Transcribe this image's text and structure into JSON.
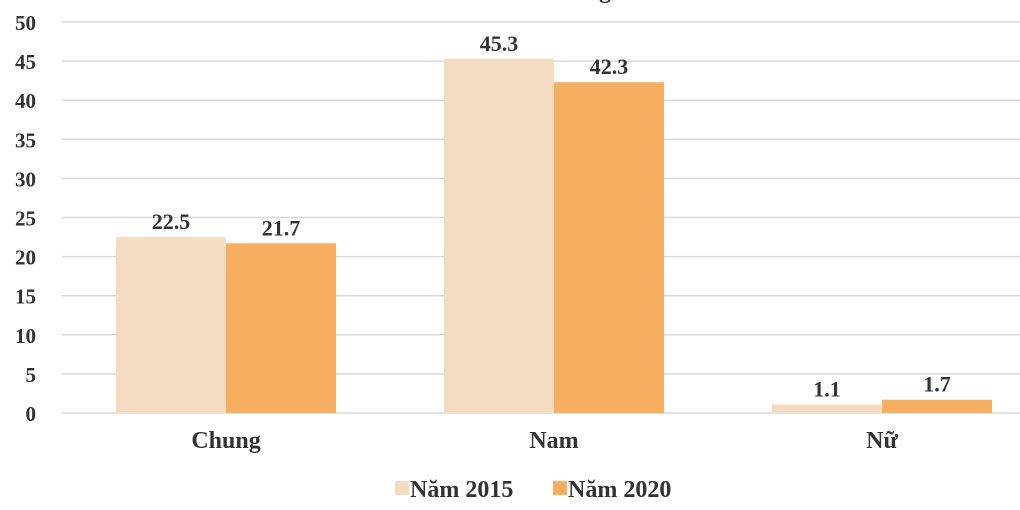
{
  "chart_data": {
    "type": "bar",
    "title": "g",
    "categories": [
      "Chung",
      "Nam",
      "Nữ"
    ],
    "series": [
      {
        "name": "Năm 2015",
        "values": [
          22.5,
          45.3,
          1.1
        ],
        "color": "#f5dcc1"
      },
      {
        "name": "Năm 2020",
        "values": [
          21.7,
          42.3,
          1.7
        ],
        "color": "#f6ae60"
      }
    ],
    "ylim": [
      0,
      50
    ],
    "yticks": [
      0,
      5,
      10,
      15,
      20,
      25,
      30,
      35,
      40,
      45,
      50
    ],
    "grid": true,
    "legend": "bottom-center",
    "xlabel": "",
    "ylabel": ""
  }
}
